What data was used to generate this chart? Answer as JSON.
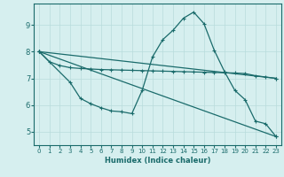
{
  "xlabel": "Humidex (Indice chaleur)",
  "bg_color": "#d6efef",
  "grid_color": "#b8dcdc",
  "line_color": "#1a6b6b",
  "xlim": [
    -0.5,
    23.5
  ],
  "ylim": [
    4.5,
    9.8
  ],
  "yticks": [
    5,
    6,
    7,
    8,
    9
  ],
  "xticks": [
    0,
    1,
    2,
    3,
    4,
    5,
    6,
    7,
    8,
    9,
    10,
    11,
    12,
    13,
    14,
    15,
    16,
    17,
    18,
    19,
    20,
    21,
    22,
    23
  ],
  "line1_x": [
    0,
    1,
    2,
    3,
    4,
    5,
    6,
    7,
    8,
    9,
    10,
    11,
    12,
    13,
    14,
    15,
    16,
    17,
    18,
    19,
    20,
    21,
    22,
    23
  ],
  "line1_y": [
    8.0,
    7.62,
    7.48,
    7.4,
    7.37,
    7.35,
    7.33,
    7.32,
    7.31,
    7.3,
    7.29,
    7.28,
    7.27,
    7.26,
    7.25,
    7.24,
    7.23,
    7.22,
    7.21,
    7.2,
    7.18,
    7.1,
    7.05,
    7.0
  ],
  "line2_x": [
    0,
    3,
    4,
    5,
    6,
    7,
    8,
    9,
    10,
    11,
    12,
    13,
    14,
    15,
    16,
    17,
    18,
    19,
    20,
    21,
    22,
    23
  ],
  "line2_y": [
    8.0,
    6.85,
    6.25,
    6.05,
    5.9,
    5.78,
    5.75,
    5.68,
    6.55,
    7.8,
    8.45,
    8.8,
    9.25,
    9.48,
    9.05,
    8.05,
    7.25,
    6.55,
    6.2,
    5.4,
    5.3,
    4.82
  ],
  "line3_x": [
    0,
    23
  ],
  "line3_y": [
    8.0,
    4.82
  ],
  "line4_x": [
    0,
    23
  ],
  "line4_y": [
    8.0,
    7.0
  ],
  "figwidth": 3.2,
  "figheight": 2.0,
  "dpi": 100
}
